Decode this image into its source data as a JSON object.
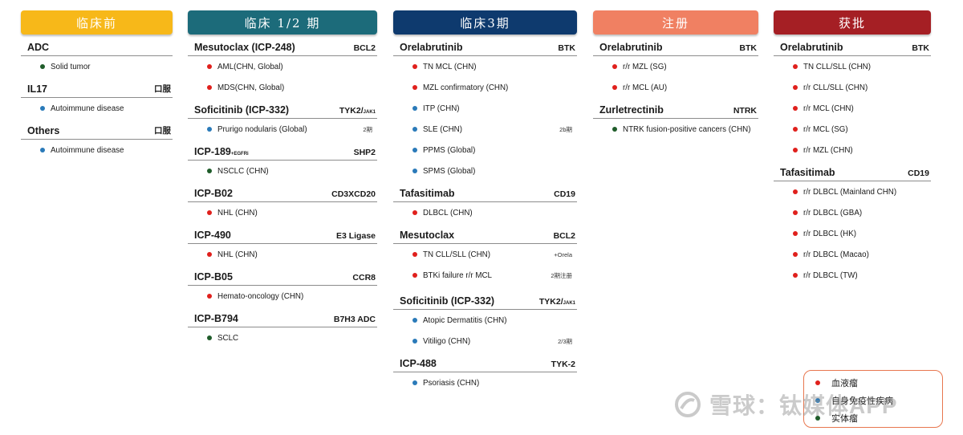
{
  "colors": {
    "heme": "#e0201c",
    "autoimmune": "#2a7ab9",
    "solid": "#1f5c2a"
  },
  "legend": {
    "items": [
      {
        "label": "血液瘤",
        "color": "#e0201c"
      },
      {
        "label": "自身免疫性疾病",
        "color": "#2a7ab9"
      },
      {
        "label": "实体瘤",
        "color": "#1f5c2a"
      }
    ]
  },
  "watermark": {
    "text": "雪球：钛媒体APP"
  },
  "columns": [
    {
      "key": "preclinical",
      "title": "临床前",
      "color": "#f7b819",
      "drugs": [
        {
          "name": "ADC",
          "target": "",
          "indications": [
            {
              "text": "Solid tumor",
              "type": "solid",
              "note": ""
            }
          ]
        },
        {
          "name": "IL17",
          "target": "口服",
          "indications": [
            {
              "text": "Autoimmune disease",
              "type": "autoimmune",
              "note": ""
            }
          ]
        },
        {
          "name": "Others",
          "target": "口服",
          "indications": [
            {
              "text": "Autoimmune disease",
              "type": "autoimmune",
              "note": ""
            }
          ]
        }
      ]
    },
    {
      "key": "phase12",
      "title": "临床 1/2 期",
      "color": "#1c6b7a",
      "drugs": [
        {
          "name": "Mesutoclax (ICP-248)",
          "target": "BCL2",
          "indications": [
            {
              "text": "AML(CHN, Global)",
              "type": "heme",
              "note": ""
            },
            {
              "text": "MDS(CHN, Global)",
              "type": "heme",
              "note": ""
            }
          ]
        },
        {
          "name": "Soficitinib (ICP-332)",
          "target": "TYK2/",
          "target_sub": "JAK1",
          "indications": [
            {
              "text": "Prurigo nodularis (Global)",
              "type": "autoimmune",
              "note": "2期"
            }
          ]
        },
        {
          "name": "ICP-189",
          "name_sub": "+EGFRi",
          "target": "SHP2",
          "indications": [
            {
              "text": "NSCLC (CHN)",
              "type": "solid",
              "note": ""
            }
          ]
        },
        {
          "name": "ICP-B02",
          "target": "CD3XCD20",
          "indications": [
            {
              "text": "NHL (CHN)",
              "type": "heme",
              "note": ""
            }
          ]
        },
        {
          "name": "ICP-490",
          "target": "E3 Ligase",
          "indications": [
            {
              "text": "NHL (CHN)",
              "type": "heme",
              "note": ""
            }
          ]
        },
        {
          "name": "ICP-B05",
          "target": "CCR8",
          "indications": [
            {
              "text": "Hemato-oncology (CHN)",
              "type": "heme",
              "note": ""
            }
          ]
        },
        {
          "name": "ICP-B794",
          "target": "B7H3 ADC",
          "indications": [
            {
              "text": "SCLC",
              "type": "solid",
              "note": ""
            }
          ]
        }
      ]
    },
    {
      "key": "phase3",
      "title": "临床3期",
      "color": "#0e3a6e",
      "drugs": [
        {
          "name": "Orelabrutinib",
          "target": "BTK",
          "indications": [
            {
              "text": "TN MCL (CHN)",
              "type": "heme",
              "note": ""
            },
            {
              "text": "MZL confirmatory (CHN)",
              "type": "heme",
              "note": ""
            },
            {
              "text": "ITP (CHN)",
              "type": "autoimmune",
              "note": ""
            },
            {
              "text": "SLE (CHN)",
              "type": "autoimmune",
              "note": "2b期"
            },
            {
              "text": "PPMS (Global)",
              "type": "autoimmune",
              "note": ""
            },
            {
              "text": "SPMS (Global)",
              "type": "autoimmune",
              "note": ""
            }
          ]
        },
        {
          "name": "Tafasitimab",
          "target": "CD19",
          "indications": [
            {
              "text": "DLBCL (CHN)",
              "type": "heme",
              "note": ""
            }
          ]
        },
        {
          "name": "Mesutoclax",
          "target": "BCL2",
          "indications": [
            {
              "text": "TN CLL/SLL (CHN)",
              "type": "heme",
              "note": "+Orela"
            },
            {
              "text": "BTKi failure r/r MCL",
              "type": "heme",
              "note": "2期注册"
            }
          ]
        },
        {
          "name": "Soficitinib (ICP-332)",
          "target": "TYK2/",
          "target_sub": "JAK1",
          "indications": [
            {
              "text": "Atopic Dermatitis (CHN)",
              "type": "autoimmune",
              "note": ""
            },
            {
              "text": "Vitiligo (CHN)",
              "type": "autoimmune",
              "note": "2/3期"
            }
          ]
        },
        {
          "name": "ICP-488",
          "target": "TYK-2",
          "indications": [
            {
              "text": "Psoriasis (CHN)",
              "type": "autoimmune",
              "note": ""
            }
          ]
        }
      ]
    },
    {
      "key": "registration",
      "title": "注册",
      "color": "#f08062",
      "drugs": [
        {
          "name": "Orelabrutinib",
          "target": "BTK",
          "indications": [
            {
              "text": "r/r MZL (SG)",
              "type": "heme",
              "note": ""
            },
            {
              "text": "r/r MCL (AU)",
              "type": "heme",
              "note": ""
            }
          ]
        },
        {
          "name": "Zurletrectinib",
          "target": "NTRK",
          "indications": [
            {
              "text": "NTRK fusion-positive cancers (CHN)",
              "type": "solid",
              "note": ""
            }
          ]
        }
      ]
    },
    {
      "key": "approved",
      "title": "获批",
      "color": "#a51f24",
      "drugs": [
        {
          "name": "Orelabrutinib",
          "target": "BTK",
          "indications": [
            {
              "text": "TN CLL/SLL (CHN)",
              "type": "heme",
              "note": ""
            },
            {
              "text": "r/r CLL/SLL (CHN)",
              "type": "heme",
              "note": ""
            },
            {
              "text": "r/r MCL (CHN)",
              "type": "heme",
              "note": ""
            },
            {
              "text": "r/r MCL (SG)",
              "type": "heme",
              "note": ""
            },
            {
              "text": "r/r MZL (CHN)",
              "type": "heme",
              "note": ""
            }
          ]
        },
        {
          "name": "Tafasitimab",
          "target": "CD19",
          "indications": [
            {
              "text": "r/r DLBCL (Mainland CHN)",
              "type": "heme",
              "note": ""
            },
            {
              "text": "r/r DLBCL (GBA)",
              "type": "heme",
              "note": ""
            },
            {
              "text": "r/r DLBCL (HK)",
              "type": "heme",
              "note": ""
            },
            {
              "text": "r/r DLBCL (Macao)",
              "type": "heme",
              "note": ""
            },
            {
              "text": "r/r DLBCL (TW)",
              "type": "heme",
              "note": ""
            }
          ]
        }
      ]
    }
  ]
}
